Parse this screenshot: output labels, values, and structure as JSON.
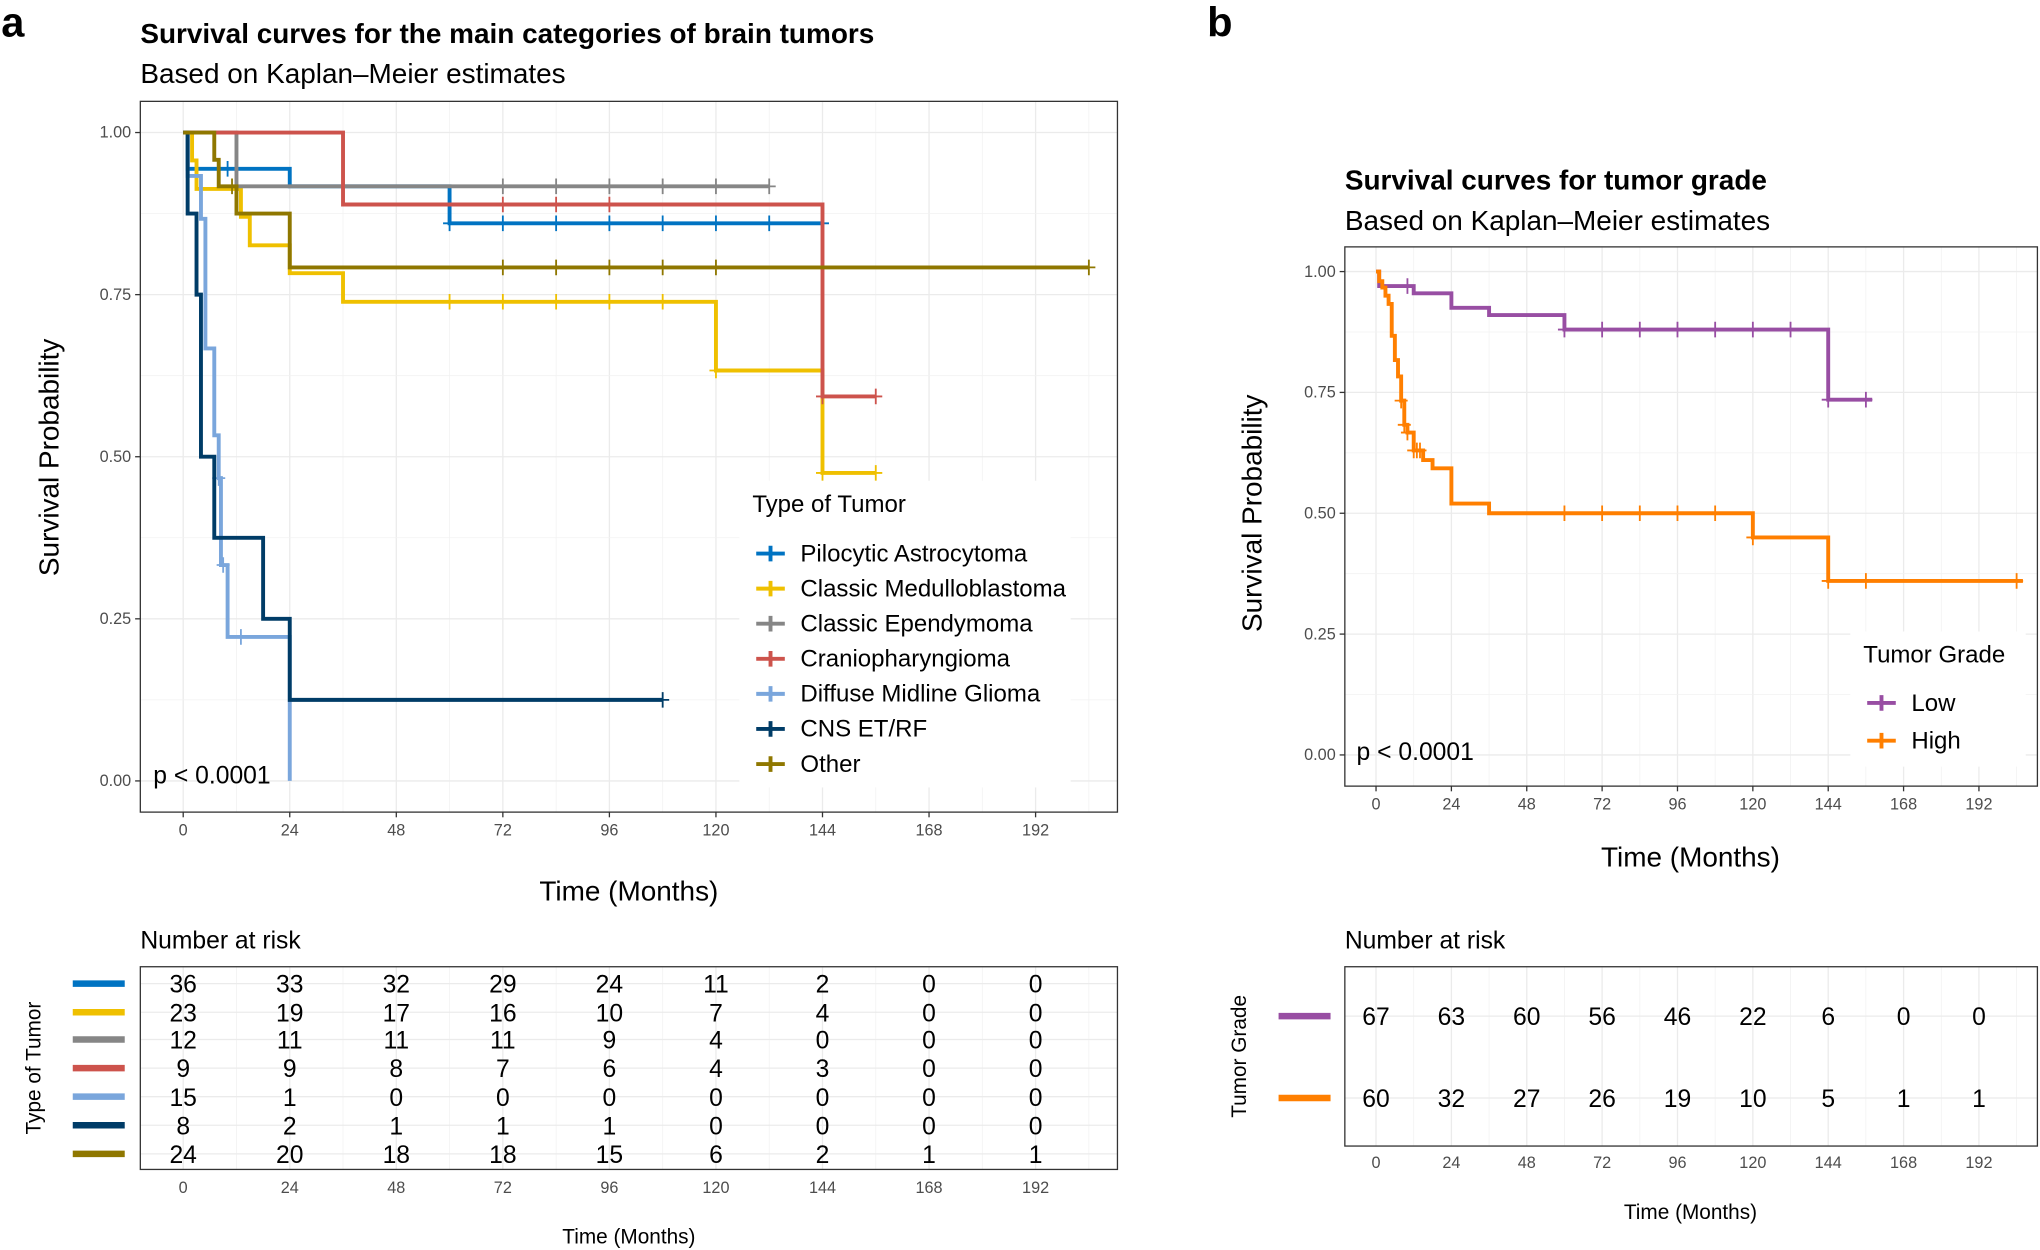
{
  "chart_data": [
    {
      "panel_label": "a",
      "type": "line",
      "subtype": "kaplan-meier step",
      "title": "Survival curves for the main categories of brain tumors",
      "subtitle": "Based on Kaplan–Meier estimates",
      "xlabel": "Time (Months)",
      "ylabel": "Survival Probability",
      "xlim": [
        -4,
        220
      ],
      "ylim": [
        -0.05,
        1.05
      ],
      "xticks": [
        "0",
        "24",
        "48",
        "72",
        "96",
        "120",
        "144",
        "168",
        "192"
      ],
      "yticks": [
        "0.00",
        "0.25",
        "0.50",
        "0.75",
        "1.00"
      ],
      "grid": true,
      "pvalue": "p < 0.0001",
      "legend_title": "Type of Tumor",
      "legend_position": "bottom-right",
      "series": [
        {
          "name": "Pilocytic Astrocytoma",
          "color": "#0073C2",
          "steps": [
            [
              1,
              0.944
            ],
            [
              24,
              0.917
            ],
            [
              60,
              0.86
            ]
          ],
          "end": 144,
          "censor": [
            10,
            60,
            72,
            84,
            96,
            108,
            120,
            132,
            144
          ]
        },
        {
          "name": "Classic Medulloblastoma",
          "color": "#EFC000",
          "steps": [
            [
              2,
              0.957
            ],
            [
              3,
              0.913
            ],
            [
              13,
              0.87
            ],
            [
              15,
              0.826
            ],
            [
              24,
              0.783
            ],
            [
              36,
              0.739
            ],
            [
              120,
              0.633
            ],
            [
              144,
              0.475
            ]
          ],
          "end": 156,
          "censor": [
            60,
            72,
            84,
            96,
            108,
            120,
            144,
            156
          ]
        },
        {
          "name": "Classic Ependymoma",
          "color": "#868686",
          "steps": [
            [
              12,
              0.917
            ]
          ],
          "end": 132,
          "censor": [
            72,
            84,
            96,
            108,
            120,
            132
          ]
        },
        {
          "name": "Craniopharyngioma",
          "color": "#CD534C",
          "steps": [
            [
              36,
              0.889
            ],
            [
              144,
              0.593
            ]
          ],
          "end": 156,
          "censor": [
            72,
            84,
            96,
            144,
            156
          ]
        },
        {
          "name": "Diffuse Midline Glioma",
          "color": "#7AA6DC",
          "steps": [
            [
              1,
              0.933
            ],
            [
              4,
              0.867
            ],
            [
              5,
              0.667
            ],
            [
              7,
              0.533
            ],
            [
              8,
              0.467
            ],
            [
              8.5,
              0.333
            ],
            [
              10,
              0.222
            ],
            [
              24,
              0
            ]
          ],
          "end": 24,
          "censor": [
            8,
            9,
            13
          ]
        },
        {
          "name": "CNS ET/RF",
          "color": "#003C67",
          "steps": [
            [
              1,
              0.875
            ],
            [
              3,
              0.75
            ],
            [
              4,
              0.5
            ],
            [
              7,
              0.375
            ],
            [
              18,
              0.25
            ],
            [
              24,
              0.125
            ]
          ],
          "end": 108,
          "censor": [
            108
          ]
        },
        {
          "name": "Other",
          "color": "#8F7700",
          "steps": [
            [
              7,
              0.958
            ],
            [
              8,
              0.917
            ],
            [
              12,
              0.875
            ],
            [
              24,
              0.792
            ]
          ],
          "end": 204,
          "censor": [
            11,
            72,
            84,
            96,
            108,
            120,
            204
          ]
        }
      ],
      "risk_table": {
        "title": "Number at risk",
        "ylabel": "Type of Tumor",
        "xlabel": "Time (Months)",
        "times": [
          "0",
          "24",
          "48",
          "72",
          "96",
          "120",
          "144",
          "168",
          "192"
        ],
        "rows": [
          [
            "36",
            "33",
            "32",
            "29",
            "24",
            "11",
            "2",
            "0",
            "0"
          ],
          [
            "23",
            "19",
            "17",
            "16",
            "10",
            "7",
            "4",
            "0",
            "0"
          ],
          [
            "12",
            "11",
            "11",
            "11",
            "9",
            "4",
            "0",
            "0",
            "0"
          ],
          [
            "9",
            "9",
            "8",
            "7",
            "6",
            "4",
            "3",
            "0",
            "0"
          ],
          [
            "15",
            "1",
            "0",
            "0",
            "0",
            "0",
            "0",
            "0",
            "0"
          ],
          [
            "8",
            "2",
            "1",
            "1",
            "1",
            "0",
            "0",
            "0",
            "0"
          ],
          [
            "24",
            "20",
            "18",
            "18",
            "15",
            "6",
            "2",
            "1",
            "1"
          ]
        ]
      }
    },
    {
      "panel_label": "b",
      "type": "line",
      "subtype": "kaplan-meier step",
      "title": "Survival curves for tumor grade",
      "subtitle": "Based on Kaplan–Meier estimates",
      "xlabel": "Time (Months)",
      "ylabel": "Survival Probability",
      "xlim": [
        -4,
        214
      ],
      "ylim": [
        -0.05,
        1.05
      ],
      "xticks": [
        "0",
        "24",
        "48",
        "72",
        "96",
        "120",
        "144",
        "168",
        "192"
      ],
      "yticks": [
        "0.00",
        "0.25",
        "0.50",
        "0.75",
        "1.00"
      ],
      "grid": true,
      "pvalue": "p < 0.0001",
      "legend_title": "Tumor Grade",
      "legend_position": "bottom-right",
      "series": [
        {
          "name": "Low",
          "color": "#984EA3",
          "steps": [
            [
              1,
              0.97
            ],
            [
              12,
              0.955
            ],
            [
              24,
              0.925
            ],
            [
              36,
              0.91
            ],
            [
              60,
              0.88
            ],
            [
              144,
              0.735
            ]
          ],
          "end": 158,
          "censor": [
            10,
            60,
            72,
            84,
            96,
            108,
            120,
            132,
            144,
            156
          ]
        },
        {
          "name": "High",
          "color": "#FF7F00",
          "steps": [
            [
              1,
              0.98
            ],
            [
              2,
              0.967
            ],
            [
              3,
              0.95
            ],
            [
              4,
              0.933
            ],
            [
              5,
              0.867
            ],
            [
              6,
              0.817
            ],
            [
              7,
              0.783
            ],
            [
              8,
              0.733
            ],
            [
              9,
              0.683
            ],
            [
              10,
              0.667
            ],
            [
              12,
              0.63
            ],
            [
              15,
              0.61
            ],
            [
              18,
              0.593
            ],
            [
              24,
              0.52
            ],
            [
              36,
              0.5
            ],
            [
              120,
              0.45
            ],
            [
              144,
              0.36
            ]
          ],
          "end": 206,
          "censor": [
            8,
            9,
            10,
            12,
            13,
            14,
            60,
            72,
            84,
            96,
            108,
            120,
            144,
            156,
            204
          ]
        }
      ],
      "risk_table": {
        "title": "Number at risk",
        "ylabel": "Tumor Grade",
        "xlabel": "Time (Months)",
        "times": [
          "0",
          "24",
          "48",
          "72",
          "96",
          "120",
          "144",
          "168",
          "192"
        ],
        "rows": [
          [
            "67",
            "63",
            "60",
            "56",
            "46",
            "22",
            "6",
            "0",
            "0"
          ],
          [
            "60",
            "32",
            "27",
            "26",
            "19",
            "10",
            "5",
            "1",
            "1"
          ]
        ]
      }
    }
  ]
}
